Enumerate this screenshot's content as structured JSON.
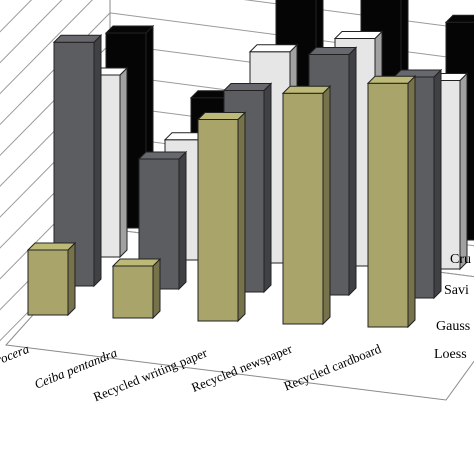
{
  "chart_data": {
    "type": "bar",
    "categories": [
      "Acrocera",
      "Ceiba pentandra",
      "Recycled writing paper",
      "Recycled newspaper",
      "Recycled cardboard"
    ],
    "series": [
      {
        "name": "Loess",
        "values": [
          2.0,
          1.6,
          6.2,
          7.1,
          7.5
        ],
        "color": "#a9a56a"
      },
      {
        "name": "Gauss",
        "values": [
          7.5,
          4.0,
          6.2,
          7.4,
          6.8
        ],
        "color": "#5b5d61"
      },
      {
        "name": "Savitzky-Golay",
        "values": [
          5.6,
          3.7,
          6.5,
          7.0,
          5.8
        ],
        "color": "#e6e6e6"
      },
      {
        "name": "Crude",
        "values": [
          6.0,
          4.1,
          8.3,
          7.9,
          6.7
        ],
        "color": "#050505"
      }
    ],
    "ylim": [
      0,
      10
    ],
    "grid": true,
    "view": "3d"
  },
  "series_labels": [
    "Loess",
    "Gauss",
    "Savi",
    "Cru"
  ],
  "category_labels": [
    "rocera",
    "Ceiba pentandra",
    "Recycled writing paper",
    "Recycled newspaper",
    "Recycled cardboard"
  ]
}
